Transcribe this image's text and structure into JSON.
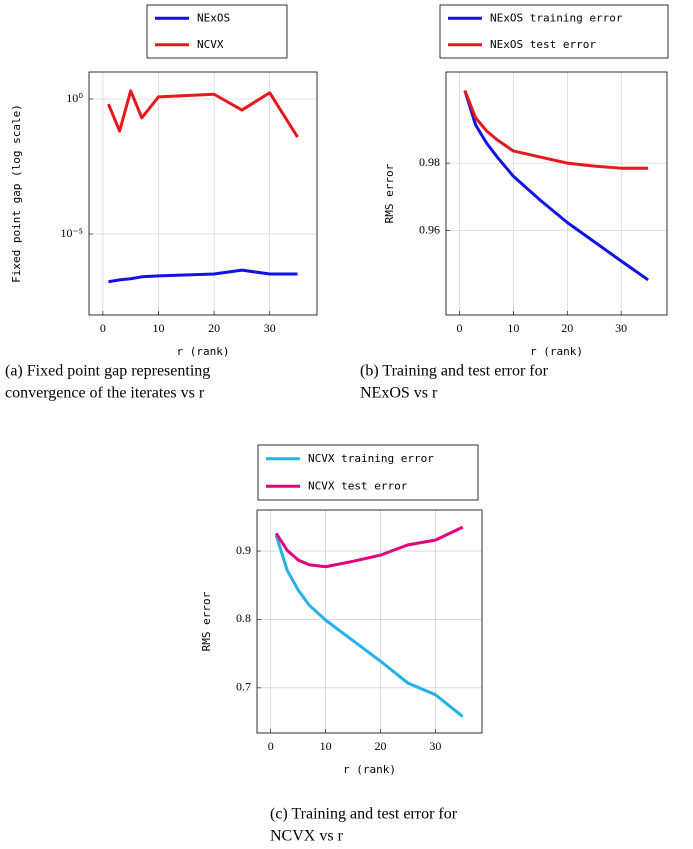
{
  "chart_data": [
    {
      "type": "line",
      "log_y": true,
      "grid": true,
      "ylabel": "Fixed point gap (log scale)",
      "xlabel": "r (rank)",
      "caption": [
        "(a) Fixed point gap representing",
        "convergence of the iterates vs r"
      ],
      "x": [
        1,
        3,
        5,
        7,
        10,
        20,
        25,
        30,
        35
      ],
      "xlim": [
        -2.5,
        38.5
      ],
      "xticks": [
        0,
        10,
        20,
        30
      ],
      "ylim": [
        1e-08,
        10
      ],
      "yticks": [
        {
          "value": 1,
          "label": "10⁰"
        },
        {
          "value": 1e-05,
          "label": "10⁻⁵"
        }
      ],
      "series": [
        {
          "name": "NExOS",
          "color": "#1212e6",
          "values": [
            1.7e-07,
            2e-07,
            2.2e-07,
            2.6e-07,
            2.8e-07,
            3.3e-07,
            4.6e-07,
            3.3e-07,
            3.3e-07
          ]
        },
        {
          "name": "NCVX",
          "color": "#e8171b",
          "values": [
            0.65,
            0.065,
            2.0,
            0.2,
            1.2,
            1.5,
            0.39,
            1.7,
            0.039
          ]
        }
      ]
    },
    {
      "type": "line",
      "log_y": false,
      "grid": true,
      "ylabel": "RMS error",
      "xlabel": "r (rank)",
      "caption": [
        "(b) Training and test error for",
        "NExOS vs r"
      ],
      "x": [
        1,
        3,
        5,
        7,
        10,
        15,
        20,
        25,
        30,
        35
      ],
      "xlim": [
        -2.5,
        38.5
      ],
      "xticks": [
        0,
        10,
        20,
        30
      ],
      "ylim": [
        0.935,
        1.007
      ],
      "yticks": [
        0.96,
        0.98
      ],
      "series": [
        {
          "name": "NExOS training error",
          "color": "#1212e6",
          "values": [
            1.0015,
            0.9913,
            0.986,
            0.9818,
            0.9761,
            0.969,
            0.9624,
            0.9567,
            0.951,
            0.9454
          ]
        },
        {
          "name": "NExOS test error",
          "color": "#e8171b",
          "values": [
            1.0015,
            0.9934,
            0.9896,
            0.9869,
            0.9836,
            0.9818,
            0.98,
            0.9791,
            0.9785,
            0.9785
          ]
        }
      ]
    },
    {
      "type": "line",
      "log_y": false,
      "grid": true,
      "ylabel": "RMS error",
      "xlabel": "r (rank)",
      "caption": [
        "(c) Training and test error for",
        "NCVX vs r"
      ],
      "x": [
        1,
        3,
        5,
        7,
        10,
        15,
        20,
        25,
        30,
        35
      ],
      "xlim": [
        -2.5,
        38.5
      ],
      "xticks": [
        0,
        10,
        20,
        30
      ],
      "ylim": [
        0.634,
        0.96
      ],
      "yticks": [
        0.7,
        0.8,
        0.9
      ],
      "series": [
        {
          "name": "NCVX training error",
          "color": "#23b2e6",
          "values": [
            0.923,
            0.872,
            0.843,
            0.821,
            0.799,
            0.769,
            0.739,
            0.707,
            0.69,
            0.658
          ]
        },
        {
          "name": "NCVX test error",
          "color": "#e3007d",
          "values": [
            0.926,
            0.901,
            0.887,
            0.88,
            0.877,
            0.885,
            0.894,
            0.909,
            0.916,
            0.935
          ]
        }
      ]
    }
  ]
}
